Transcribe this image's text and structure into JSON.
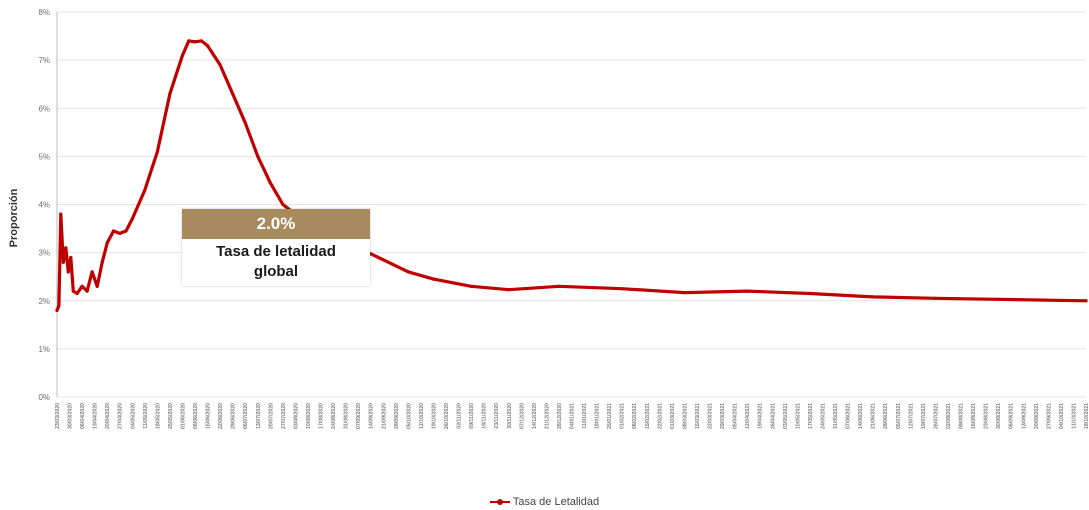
{
  "chart_data": {
    "type": "line",
    "title": "",
    "xlabel": "",
    "ylabel": "Proporción",
    "ylim": [
      0,
      8
    ],
    "y_ticks": [
      "0%",
      "1%",
      "2%",
      "3%",
      "4%",
      "5%",
      "6%",
      "7%",
      "8%"
    ],
    "grid": "horizontal",
    "legend_position": "bottom",
    "x_tick_labels": [
      "23/03/2020",
      "30/03/2020",
      "06/04/2020",
      "13/04/2020",
      "20/04/2020",
      "27/04/2020",
      "04/05/2020",
      "11/05/2020",
      "18/05/2020",
      "25/05/2020",
      "01/06/2020",
      "08/06/2020",
      "15/06/2020",
      "22/06/2020",
      "29/06/2020",
      "06/07/2020",
      "13/07/2020",
      "20/07/2020",
      "27/07/2020",
      "03/08/2020",
      "10/08/2020",
      "17/08/2020",
      "24/08/2020",
      "31/08/2020",
      "07/09/2020",
      "14/09/2020",
      "21/09/2020",
      "28/09/2020",
      "05/10/2020",
      "12/10/2020",
      "19/10/2020",
      "26/10/2020",
      "02/11/2020",
      "09/11/2020",
      "16/11/2020",
      "23/11/2020",
      "30/11/2020",
      "07/12/2020",
      "14/12/2020",
      "21/12/2020",
      "28/12/2020",
      "04/01/2021",
      "11/01/2021",
      "18/01/2021",
      "25/01/2021",
      "01/02/2021",
      "08/02/2021",
      "15/02/2021",
      "22/02/2021",
      "01/03/2021",
      "08/03/2021",
      "15/03/2021",
      "22/03/2021",
      "29/03/2021",
      "05/04/2021",
      "12/04/2021",
      "19/04/2021",
      "26/04/2021",
      "03/05/2021",
      "10/05/2021",
      "17/05/2021",
      "24/05/2021",
      "31/05/2021",
      "07/06/2021",
      "14/06/2021",
      "21/06/2021",
      "28/06/2021",
      "05/07/2021",
      "12/07/2021",
      "19/07/2021",
      "26/07/2021",
      "02/08/2021",
      "09/08/2021",
      "16/08/2021",
      "23/08/2021",
      "30/08/2021",
      "06/09/2021",
      "13/09/2021",
      "20/09/2021",
      "27/09/2021",
      "04/10/2021",
      "11/10/2021",
      "18/10/2021"
    ],
    "series": [
      {
        "name": "Tasa de Letalidad",
        "color": "#c00000",
        "x_index": [
          0,
          0.15,
          0.3,
          0.5,
          0.7,
          0.9,
          1.1,
          1.3,
          1.6,
          2.0,
          2.4,
          2.8,
          3.2,
          3.6,
          4.0,
          4.5,
          5.0,
          5.5,
          6.0,
          7.0,
          8.0,
          9.0,
          10.0,
          10.5,
          11.0,
          11.5,
          12.0,
          13.0,
          14.0,
          15.0,
          16.0,
          17.0,
          18.0,
          20.0,
          22.0,
          24.0,
          26.0,
          28.0,
          30.0,
          33.0,
          36.0,
          40.0,
          45.0,
          50.0,
          55.0,
          60.0,
          65.0,
          70.0,
          75.0,
          82.0
        ],
        "values": [
          1.8,
          1.9,
          3.8,
          2.8,
          3.1,
          2.6,
          2.9,
          2.2,
          2.15,
          2.3,
          2.2,
          2.6,
          2.3,
          2.8,
          3.2,
          3.45,
          3.4,
          3.45,
          3.7,
          4.3,
          5.1,
          6.3,
          7.1,
          7.4,
          7.38,
          7.4,
          7.3,
          6.9,
          6.3,
          5.7,
          5.0,
          4.45,
          4.0,
          3.6,
          3.3,
          3.1,
          2.85,
          2.6,
          2.45,
          2.3,
          2.23,
          2.3,
          2.25,
          2.17,
          2.2,
          2.15,
          2.08,
          2.05,
          2.03,
          2.0
        ]
      }
    ],
    "annotation": {
      "value": "2.0%",
      "label_line1": "Tasa de letalidad",
      "label_line2": "global",
      "color": "#a78a5e"
    }
  }
}
